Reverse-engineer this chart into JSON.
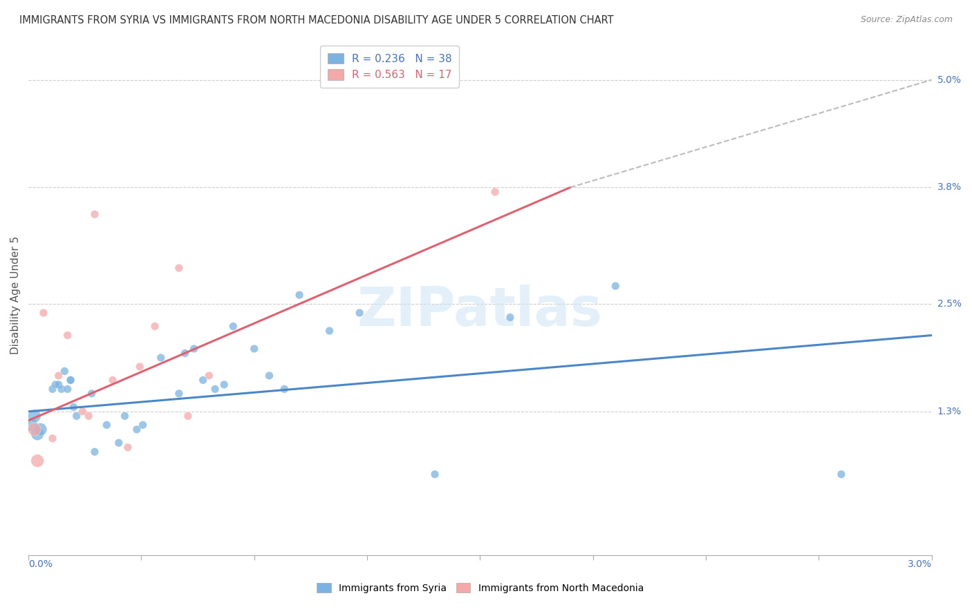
{
  "title": "IMMIGRANTS FROM SYRIA VS IMMIGRANTS FROM NORTH MACEDONIA DISABILITY AGE UNDER 5 CORRELATION CHART",
  "source": "Source: ZipAtlas.com",
  "ylabel": "Disability Age Under 5",
  "xlim": [
    0.0,
    3.0
  ],
  "ylim": [
    -0.3,
    5.5
  ],
  "ytick_vals": [
    1.3,
    2.5,
    3.8,
    5.0
  ],
  "ytick_labels": [
    "1.3%",
    "2.5%",
    "3.8%",
    "5.0%"
  ],
  "xtick_labels": [
    "0.0%",
    "3.0%"
  ],
  "syria_R": 0.236,
  "syria_N": 38,
  "macedonia_R": 0.563,
  "macedonia_N": 17,
  "syria_color": "#7ab3e0",
  "macedonia_color": "#f4a8a8",
  "syria_line_color": "#4a86c8",
  "macedonia_line_color": "#e06070",
  "dash_line_color": "#bbbbbb",
  "watermark": "ZIPatlas",
  "syria_line_x0": 0.0,
  "syria_line_y0": 1.3,
  "syria_line_x1": 3.0,
  "syria_line_y1": 2.15,
  "macedonia_line_x0": 0.0,
  "macedonia_line_y0": 1.2,
  "macedonia_line_x1": 1.8,
  "macedonia_line_y1": 3.8,
  "macedonia_dash_x0": 1.8,
  "macedonia_dash_y0": 3.8,
  "macedonia_dash_x1": 3.0,
  "macedonia_dash_y1": 5.0,
  "syria_points_x": [
    0.01,
    0.02,
    0.03,
    0.04,
    0.08,
    0.09,
    0.1,
    0.11,
    0.12,
    0.13,
    0.14,
    0.14,
    0.15,
    0.16,
    0.21,
    0.22,
    0.26,
    0.3,
    0.32,
    0.36,
    0.38,
    0.44,
    0.5,
    0.52,
    0.55,
    0.58,
    0.62,
    0.65,
    0.68,
    0.75,
    0.8,
    0.85,
    0.9,
    1.0,
    1.1,
    1.35,
    1.6,
    1.95,
    2.7
  ],
  "syria_points_y": [
    1.15,
    1.25,
    1.05,
    1.1,
    1.55,
    1.6,
    1.6,
    1.55,
    1.75,
    1.55,
    1.65,
    1.65,
    1.35,
    1.25,
    1.5,
    0.85,
    1.15,
    0.95,
    1.25,
    1.1,
    1.15,
    1.9,
    1.5,
    1.95,
    2.0,
    1.65,
    1.55,
    1.6,
    2.25,
    2.0,
    1.7,
    1.55,
    2.6,
    2.2,
    2.4,
    0.6,
    2.35,
    2.7,
    0.6
  ],
  "macedonia_points_x": [
    0.02,
    0.03,
    0.05,
    0.08,
    0.1,
    0.13,
    0.18,
    0.2,
    0.22,
    0.28,
    0.33,
    0.37,
    0.42,
    0.5,
    0.53,
    0.6,
    1.55
  ],
  "macedonia_points_y": [
    1.1,
    0.75,
    2.4,
    1.0,
    1.7,
    2.15,
    1.3,
    1.25,
    3.5,
    1.65,
    0.9,
    1.8,
    2.25,
    2.9,
    1.25,
    1.7,
    3.75
  ]
}
